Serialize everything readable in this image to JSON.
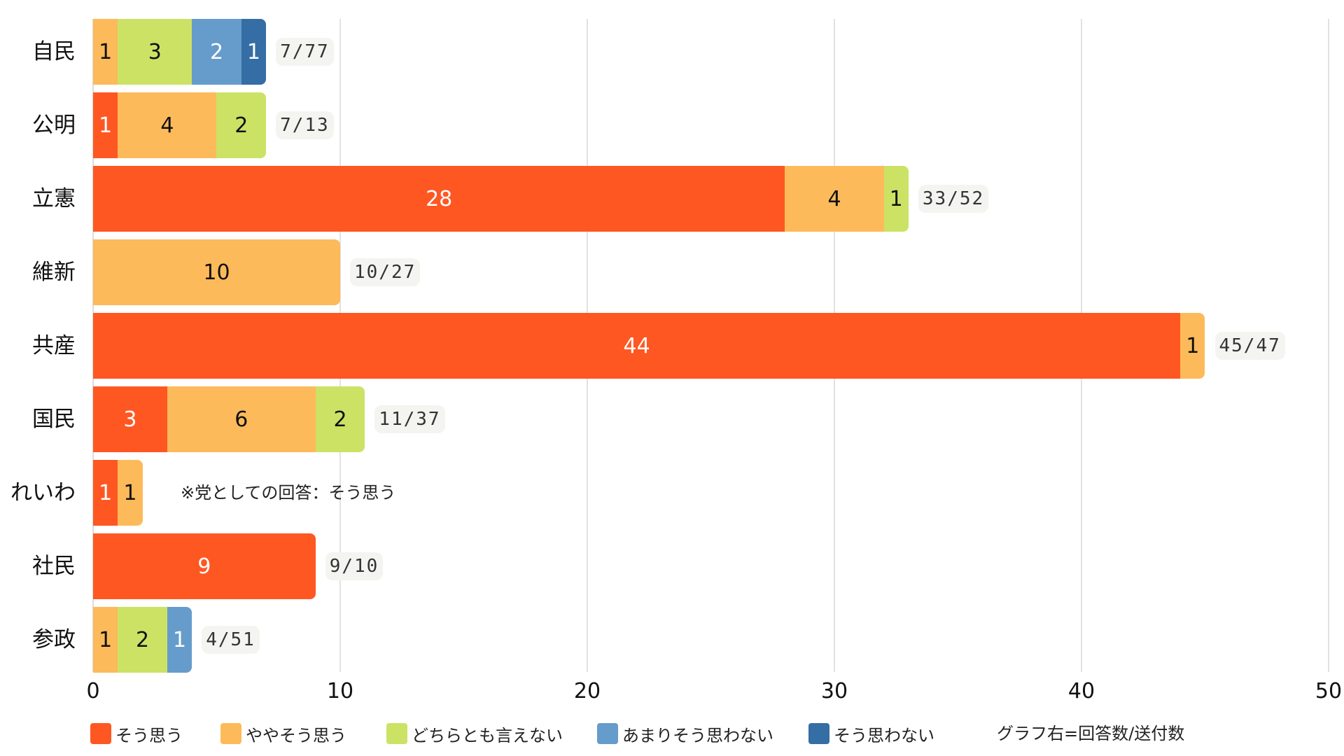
{
  "chart_data": {
    "type": "bar",
    "orientation": "horizontal",
    "stacked": true,
    "title": "",
    "xlabel": "",
    "ylabel": "",
    "xlim": [
      0,
      50
    ],
    "xticks": [
      0,
      10,
      20,
      30,
      40,
      50
    ],
    "grid": true,
    "legend_position": "bottom",
    "categories": [
      "自民",
      "公明",
      "立憲",
      "維新",
      "共産",
      "国民",
      "れいわ",
      "社民",
      "参政"
    ],
    "series": [
      {
        "name": "そう思う",
        "color": "#FF5722",
        "values": [
          0,
          1,
          28,
          0,
          44,
          3,
          1,
          9,
          0
        ]
      },
      {
        "name": "ややそう思う",
        "color": "#FDBA5A",
        "values": [
          1,
          4,
          4,
          10,
          1,
          6,
          1,
          0,
          1
        ]
      },
      {
        "name": "どちらとも言えない",
        "color": "#CBE265",
        "values": [
          3,
          2,
          1,
          0,
          0,
          2,
          0,
          0,
          2
        ]
      },
      {
        "name": "あまりそう思わない",
        "color": "#669CCB",
        "values": [
          2,
          0,
          0,
          0,
          0,
          0,
          0,
          0,
          1
        ]
      },
      {
        "name": "そう思わない",
        "color": "#356DA5",
        "values": [
          1,
          0,
          0,
          0,
          0,
          0,
          0,
          0,
          0
        ]
      }
    ],
    "annotations": {
      "totals": [
        "7/77",
        "7/13",
        "33/52",
        "10/27",
        "45/47",
        "11/37",
        "",
        "9/10",
        "4/51"
      ],
      "reiwa_note": "※党としての回答：そう思う",
      "legend_note": "グラフ右=回答数/送付数"
    }
  },
  "axis": {
    "ticks": [
      "0",
      "10",
      "20",
      "30",
      "40",
      "50"
    ]
  },
  "legend": {
    "items": [
      {
        "label": "そう思う",
        "color": "#FF5722"
      },
      {
        "label": "ややそう思う",
        "color": "#FDBA5A"
      },
      {
        "label": "どちらとも言えない",
        "color": "#CBE265"
      },
      {
        "label": "あまりそう思わない",
        "color": "#669CCB"
      },
      {
        "label": "そう思わない",
        "color": "#356DA5"
      }
    ],
    "note": "グラフ右=回答数/送付数"
  }
}
